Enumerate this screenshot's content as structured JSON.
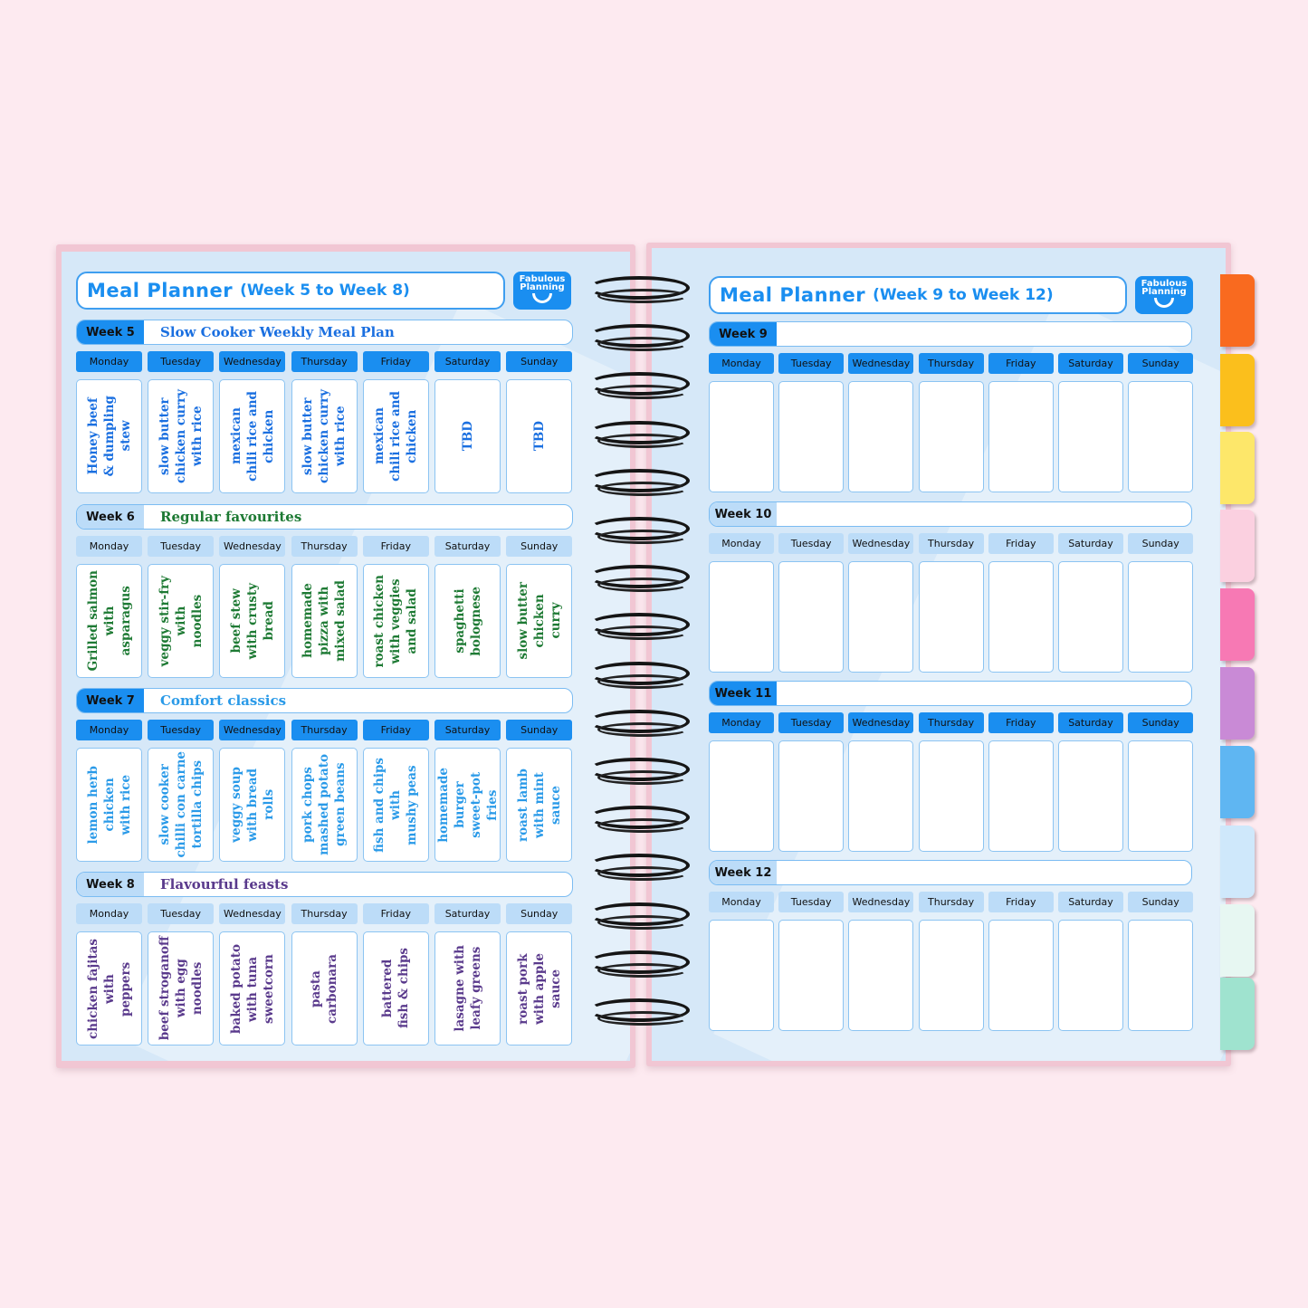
{
  "days": [
    "Monday",
    "Tuesday",
    "Wednesday",
    "Thursday",
    "Friday",
    "Saturday",
    "Sunday"
  ],
  "left": {
    "title": "Meal Planner",
    "subtitle": "(Week 5 to Week 8)",
    "logo": "Fabulous Planning",
    "weeks": [
      {
        "label": "Week 5",
        "theme": "Slow Cooker Weekly Meal Plan",
        "style": "strong",
        "text_color": "#1a6fe0",
        "meals": [
          [
            "Honey beef",
            "& dumpling",
            "stew"
          ],
          [
            "slow butter",
            "chicken curry",
            "with rice"
          ],
          [
            "mexican",
            "chili rice and",
            "chicken"
          ],
          [
            "slow butter",
            "chicken curry",
            "with rice"
          ],
          [
            "mexican",
            "chili rice and",
            "chicken"
          ],
          [
            "TBD"
          ],
          [
            "TBD"
          ]
        ]
      },
      {
        "label": "Week 6",
        "theme": "Regular favourites",
        "style": "light",
        "text_color": "#1e7a34",
        "meals": [
          [
            "Grilled salmon",
            "with",
            "asparagus"
          ],
          [
            "veggy stir-fry",
            "with",
            "noodles"
          ],
          [
            "beef stew",
            "with crusty",
            "bread"
          ],
          [
            "homemade",
            "pizza with",
            "mixed salad"
          ],
          [
            "roast chicken",
            "with veggies",
            "and salad"
          ],
          [
            "spaghetti",
            "bolognese"
          ],
          [
            "slow butter",
            "chicken",
            "curry"
          ]
        ]
      },
      {
        "label": "Week 7",
        "theme": "Comfort classics",
        "style": "strong",
        "text_color": "#2a9ae8",
        "meals": [
          [
            "lemon herb",
            "chicken",
            "with rice"
          ],
          [
            "slow cooker",
            "chilli con carne",
            "tortilla chips"
          ],
          [
            "veggy soup",
            "with bread",
            "rolls"
          ],
          [
            "pork chops",
            "mashed potato",
            "green beans"
          ],
          [
            "fish and chips",
            "with",
            "mushy peas"
          ],
          [
            "homemade",
            "burger",
            "sweet-pot",
            "fries"
          ],
          [
            "roast lamb",
            "with mint",
            "sauce"
          ]
        ]
      },
      {
        "label": "Week 8",
        "theme": "Flavourful feasts",
        "style": "light",
        "text_color": "#5a3a8c",
        "meals": [
          [
            "chicken fajitas",
            "with",
            "peppers"
          ],
          [
            "beef stroganoff",
            "with egg",
            "noodles"
          ],
          [
            "baked potato",
            "with tuna",
            "sweetcorn"
          ],
          [
            "pasta",
            "carbonara"
          ],
          [
            "battered",
            "fish & chips"
          ],
          [
            "lasagne with",
            "leafy greens"
          ],
          [
            "roast pork",
            "with apple",
            "sauce"
          ]
        ]
      }
    ]
  },
  "right": {
    "title": "Meal Planner",
    "subtitle": "(Week 9 to Week 12)",
    "logo": "Fabulous Planning",
    "weeks": [
      {
        "label": "Week 9",
        "theme": "",
        "style": "strong"
      },
      {
        "label": "Week 10",
        "theme": "",
        "style": "light"
      },
      {
        "label": "Week 11",
        "theme": "",
        "style": "strong"
      },
      {
        "label": "Week 12",
        "theme": "",
        "style": "light"
      }
    ]
  },
  "colors": {
    "background": "#fdeaf0",
    "strong": "#1a8ef0",
    "light": "#bcdcf8",
    "title": "#1a8ef0"
  },
  "tabs": [
    "#f96a1f",
    "#fbbf1c",
    "#fde76a",
    "#fbd0e0",
    "#f779b4",
    "#c98ad6",
    "#5fb6f2",
    "#cfe8fb",
    "#e7f7f2",
    "#9fe3cf"
  ]
}
